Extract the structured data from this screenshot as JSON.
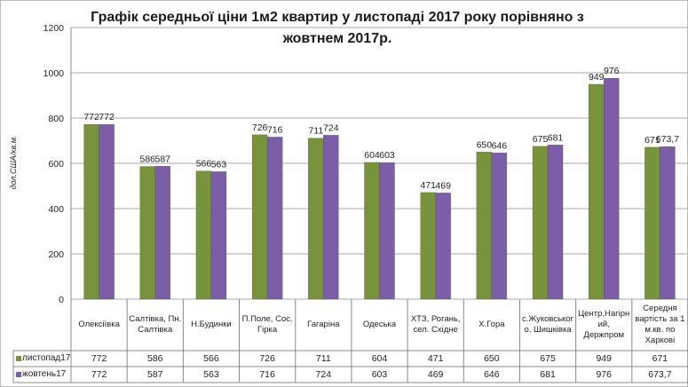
{
  "chart_data": {
    "type": "bar",
    "title": "Графік середньої ціни 1м2 квартир у листопаді 2017 року порівняно з жовтнем 2017р.",
    "y_label": "дол.США/кв.м.",
    "categories": [
      "Олексіївка",
      "Салтівка, Пн. Салтівка",
      "Н.Будинки",
      "П.Поле, Сос. Гірка",
      "Гагаріна",
      "Одеська",
      "ХТЗ, Рогань, сел. Східне",
      "Х.Гора",
      "с.Жуковського, Шишківка",
      "Центр,Нагірний, Держпром",
      "Середня вартість за 1 м.кв. по Харкові"
    ],
    "series": [
      {
        "name": "листопад17",
        "color": "#77933c",
        "values": [
          772,
          586,
          566,
          726,
          711,
          604,
          471,
          650,
          675,
          949,
          671
        ]
      },
      {
        "name": "жовтень17",
        "color": "#7b5ea7",
        "values": [
          772,
          587,
          563,
          716,
          724,
          603,
          469,
          646,
          681,
          976,
          673.7
        ],
        "value_labels": [
          "772",
          "587",
          "563",
          "716",
          "724",
          "603",
          "469",
          "646",
          "681",
          "976",
          "673,7"
        ]
      }
    ],
    "ylim": [
      0,
      1200
    ],
    "yticks": [
      0,
      200,
      400,
      600,
      800,
      1000,
      1200
    ],
    "grid": true
  }
}
